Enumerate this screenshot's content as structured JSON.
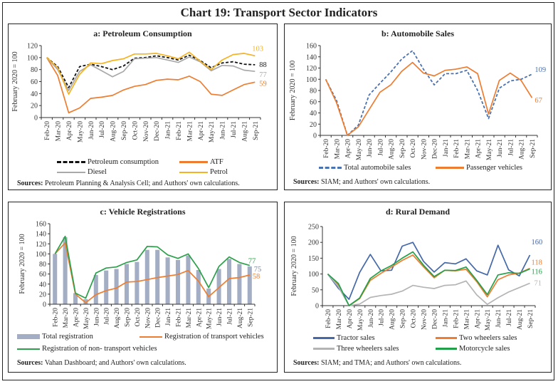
{
  "page_title": "Chart 19: Transport Sector Indicators",
  "months": [
    "Feb-20",
    "Mar-20",
    "Apr-20",
    "May-20",
    "Jun-20",
    "Jul-20",
    "Aug-20",
    "Sep-20",
    "Oct-20",
    "Nov-20",
    "Dec-20",
    "Jan-21",
    "Feb-21",
    "Mar-21",
    "Apr-21",
    "May-21",
    "Jun-21",
    "Jul-21",
    "Aug-21",
    "Sep-21"
  ],
  "chart_data": [
    {
      "id": "a",
      "type": "line",
      "title": "a: Petroleum Consumption",
      "ylabel": "February 2020 = 100",
      "ylim": [
        0,
        120
      ],
      "yticks": [
        0,
        20,
        40,
        60,
        80,
        100,
        120
      ],
      "source_bold": "Sources:",
      "source_text": "Petroleum Planning & Analysis Cell; and Authors' own calculations.",
      "series": [
        {
          "name": "Petroleum consumption",
          "color": "#111111",
          "dash": true,
          "end_label": "88",
          "values": [
            100,
            85,
            50,
            85,
            89,
            85,
            80,
            86,
            99,
            100,
            103,
            100,
            96,
            104,
            95,
            83,
            91,
            93,
            89,
            88
          ]
        },
        {
          "name": "ATF",
          "color": "#ED7D31",
          "dash": false,
          "end_label": "59",
          "values": [
            100,
            70,
            8,
            16,
            32,
            34,
            37,
            46,
            52,
            55,
            62,
            64,
            63,
            69,
            60,
            39,
            37,
            46,
            55,
            59
          ]
        },
        {
          "name": "Diesel",
          "color": "#A9A9A9",
          "dash": false,
          "end_label": "77",
          "values": [
            100,
            80,
            45,
            77,
            88,
            78,
            68,
            77,
            98,
            99,
            100,
            96,
            92,
            101,
            93,
            78,
            87,
            86,
            79,
            77
          ]
        },
        {
          "name": "Petrol",
          "color": "#F4B323",
          "dash": false,
          "end_label": "103",
          "values": [
            100,
            83,
            39,
            72,
            91,
            90,
            95,
            98,
            106,
            106,
            107,
            103,
            98,
            109,
            94,
            80,
            96,
            105,
            107,
            103
          ]
        }
      ]
    },
    {
      "id": "b",
      "type": "line",
      "title": "b: Automobile Sales",
      "ylabel": "February 2020 = 100",
      "ylim": [
        0,
        160
      ],
      "yticks": [
        0,
        20,
        40,
        60,
        80,
        100,
        120,
        140,
        160
      ],
      "source_bold": "Sources:",
      "source_text": "SIAM; and Authors' own calculations.",
      "series": [
        {
          "name": "Total automobile sales",
          "color": "#4A72B0",
          "dash": true,
          "end_label": "109",
          "values": [
            100,
            62,
            0,
            18,
            72,
            93,
            113,
            136,
            151,
            118,
            90,
            110,
            110,
            116,
            80,
            30,
            84,
            97,
            100,
            109
          ]
        },
        {
          "name": "Passenger vehicles",
          "color": "#ED7D31",
          "dash": false,
          "end_label": "67",
          "values": [
            100,
            58,
            0,
            15,
            46,
            77,
            90,
            114,
            130,
            111,
            106,
            116,
            118,
            122,
            110,
            38,
            98,
            111,
            98,
            67
          ]
        }
      ]
    },
    {
      "id": "c",
      "type": "bar+line",
      "title": "c: Vehicle Registrations",
      "ylabel": "February 2020 = 100",
      "ylim": [
        0,
        160
      ],
      "yticks": [
        0,
        20,
        40,
        60,
        80,
        100,
        120,
        140,
        160
      ],
      "source_bold": "Sources:",
      "source_text": "Vahan Dashboard; and Authors' own calculations.",
      "bars": {
        "name": "Total registration",
        "color": "#A3AEC4",
        "end_label": "75",
        "values": [
          100,
          133,
          22,
          10,
          58,
          67,
          70,
          80,
          84,
          108,
          108,
          93,
          88,
          97,
          68,
          31,
          70,
          90,
          80,
          75
        ]
      },
      "series": [
        {
          "name": "Registration of transport vehicles",
          "color": "#ED7D31",
          "dash": false,
          "end_label": "58",
          "values": [
            100,
            122,
            20,
            3,
            19,
            27,
            32,
            44,
            45,
            49,
            53,
            56,
            59,
            67,
            46,
            15,
            33,
            51,
            53,
            58
          ]
        },
        {
          "name": "Registration of non- transport vehicles",
          "color": "#2CA04A",
          "dash": false,
          "end_label": "77",
          "values": [
            100,
            135,
            22,
            12,
            62,
            72,
            74,
            83,
            88,
            115,
            114,
            98,
            91,
            100,
            71,
            33,
            75,
            94,
            83,
            77
          ]
        }
      ]
    },
    {
      "id": "d",
      "type": "line",
      "title": "d: Rural Demand",
      "ylabel": "February 2020 = 100",
      "ylim": [
        0,
        250
      ],
      "yticks": [
        0,
        50,
        100,
        150,
        200,
        250
      ],
      "source_bold": "Sources:",
      "source_text": "SIAM; and TMA; and Authors' own calculations.",
      "series": [
        {
          "name": "Tractor sales",
          "color": "#4468A8",
          "dash": false,
          "end_label": "160",
          "values": [
            100,
            55,
            20,
            105,
            162,
            110,
            112,
            188,
            200,
            140,
            106,
            136,
            132,
            148,
            110,
            97,
            191,
            113,
            94,
            160
          ]
        },
        {
          "name": "Two wheelers sales",
          "color": "#ED7D31",
          "dash": false,
          "end_label": "118",
          "values": [
            100,
            65,
            0,
            22,
            80,
            102,
            122,
            143,
            160,
            123,
            88,
            112,
            110,
            115,
            76,
            28,
            82,
            97,
            103,
            118
          ]
        },
        {
          "name": "Three wheelers sales",
          "color": "#B4B4B4",
          "dash": false,
          "end_label": "71",
          "values": [
            100,
            60,
            0,
            5,
            26,
            32,
            36,
            46,
            64,
            58,
            54,
            64,
            66,
            78,
            34,
            4,
            25,
            43,
            57,
            71
          ]
        },
        {
          "name": "Motorcycle sales",
          "color": "#22A049",
          "dash": false,
          "end_label": "116",
          "values": [
            100,
            70,
            0,
            24,
            86,
            110,
            127,
            150,
            170,
            128,
            92,
            112,
            111,
            122,
            80,
            35,
            97,
            104,
            102,
            116
          ]
        }
      ]
    }
  ]
}
